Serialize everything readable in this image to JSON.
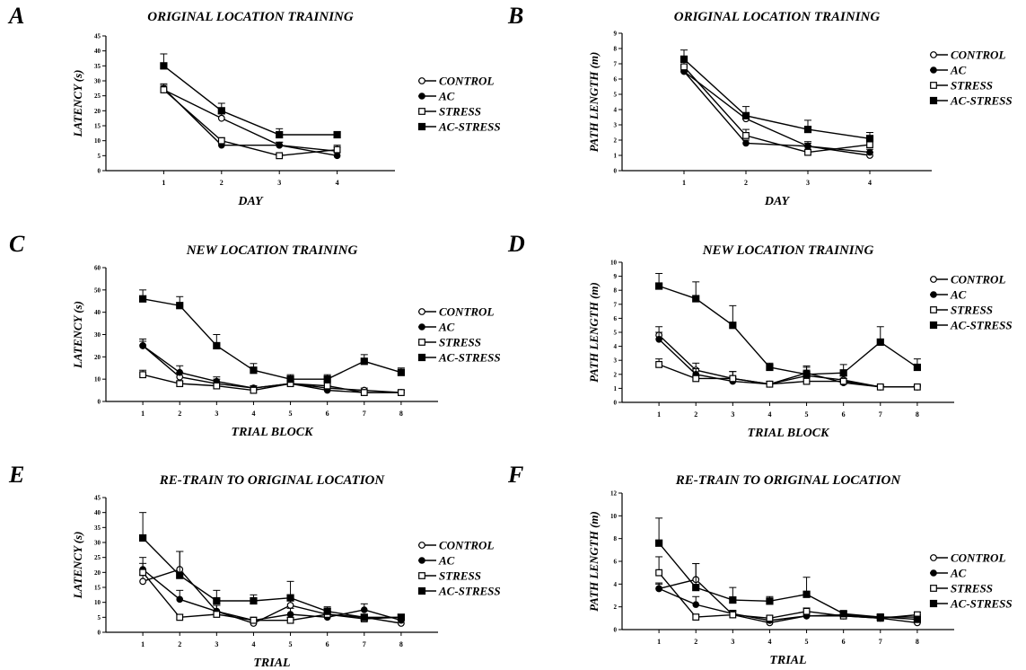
{
  "chart_data": [
    {
      "panel": "A",
      "type": "line",
      "title": "ORIGINAL LOCATION TRAINING",
      "xlabel": "DAY",
      "ylabel": "LATENCY (s)",
      "x": [
        1,
        2,
        3,
        4
      ],
      "xticks": [
        "1",
        "2",
        "3",
        "4"
      ],
      "ylim": [
        0,
        45
      ],
      "yticks": [
        "0",
        "5",
        "10",
        "15",
        "20",
        "25",
        "30",
        "35",
        "40",
        "45"
      ],
      "legend": "right",
      "grid": false,
      "series": [
        {
          "name": "CONTROL",
          "marker": "open-circle",
          "values": [
            27,
            17.5,
            8.5,
            6.5
          ],
          "errors": [
            1.5,
            1.5,
            1,
            1.5
          ]
        },
        {
          "name": "AC",
          "marker": "filled-circle",
          "values": [
            27.5,
            8.5,
            8.5,
            5
          ],
          "errors": [
            1.5,
            1,
            1,
            1
          ]
        },
        {
          "name": "STRESS",
          "marker": "open-square",
          "values": [
            27,
            10,
            5,
            7
          ],
          "errors": [
            1.5,
            1,
            0.5,
            1.5
          ]
        },
        {
          "name": "AC-STRESS",
          "marker": "filled-square",
          "values": [
            35,
            20,
            12,
            12
          ],
          "errors": [
            4,
            2.5,
            2,
            1
          ]
        }
      ]
    },
    {
      "panel": "B",
      "type": "line",
      "title": "ORIGINAL LOCATION TRAINING",
      "xlabel": "DAY",
      "ylabel": "PATH LENGTH (m)",
      "x": [
        1,
        2,
        3,
        4
      ],
      "xticks": [
        "1",
        "2",
        "3",
        "4"
      ],
      "ylim": [
        0,
        9
      ],
      "yticks": [
        "0",
        "1",
        "2",
        "3",
        "4",
        "5",
        "6",
        "7",
        "8",
        "9"
      ],
      "legend": "right",
      "grid": false,
      "series": [
        {
          "name": "CONTROL",
          "marker": "open-circle",
          "values": [
            6.5,
            3.4,
            1.6,
            1
          ],
          "errors": [
            0.4,
            0.3,
            0.3,
            0.2
          ]
        },
        {
          "name": "AC",
          "marker": "filled-circle",
          "values": [
            6.5,
            1.8,
            1.6,
            1.2
          ],
          "errors": [
            0.3,
            0.2,
            0.2,
            0.2
          ]
        },
        {
          "name": "STRESS",
          "marker": "open-square",
          "values": [
            6.8,
            2.3,
            1.2,
            1.7
          ],
          "errors": [
            0.4,
            0.4,
            0.2,
            0.4
          ]
        },
        {
          "name": "AC-STRESS",
          "marker": "filled-square",
          "values": [
            7.3,
            3.6,
            2.7,
            2.1
          ],
          "errors": [
            0.6,
            0.6,
            0.6,
            0.4
          ]
        }
      ]
    },
    {
      "panel": "C",
      "type": "line",
      "title": "NEW LOCATION TRAINING",
      "xlabel": "TRIAL BLOCK",
      "ylabel": "LATENCY (s)",
      "x": [
        1,
        2,
        3,
        4,
        5,
        6,
        7,
        8
      ],
      "xticks": [
        "1",
        "2",
        "3",
        "4",
        "5",
        "6",
        "7",
        "8"
      ],
      "ylim": [
        0,
        60
      ],
      "yticks": [
        "0",
        "10",
        "20",
        "30",
        "40",
        "50",
        "60"
      ],
      "legend": "right",
      "grid": false,
      "series": [
        {
          "name": "CONTROL",
          "marker": "open-circle",
          "values": [
            25,
            11,
            8,
            6,
            8,
            6,
            5,
            4
          ],
          "errors": [
            2,
            2,
            2,
            1,
            1,
            1,
            1,
            1
          ]
        },
        {
          "name": "AC",
          "marker": "filled-circle",
          "values": [
            25,
            13,
            9,
            6,
            8,
            5,
            4,
            4
          ],
          "errors": [
            3,
            3,
            2,
            1,
            1,
            1,
            1,
            1
          ]
        },
        {
          "name": "STRESS",
          "marker": "open-square",
          "values": [
            12,
            8,
            7,
            5,
            8,
            7,
            4,
            4
          ],
          "errors": [
            2,
            1,
            1,
            1,
            1,
            1,
            1,
            1
          ]
        },
        {
          "name": "AC-STRESS",
          "marker": "filled-square",
          "values": [
            46,
            43,
            25,
            14,
            10,
            10,
            18,
            13
          ],
          "errors": [
            4,
            4,
            5,
            3,
            2,
            2,
            3,
            2
          ]
        }
      ]
    },
    {
      "panel": "D",
      "type": "line",
      "title": "NEW LOCATION TRAINING",
      "xlabel": "TRIAL BLOCK",
      "ylabel": "PATH LENGTH (m)",
      "x": [
        1,
        2,
        3,
        4,
        5,
        6,
        7,
        8
      ],
      "xticks": [
        "1",
        "2",
        "3",
        "4",
        "5",
        "6",
        "7",
        "8"
      ],
      "ylim": [
        0,
        10
      ],
      "yticks": [
        "0",
        "1",
        "2",
        "3",
        "4",
        "5",
        "6",
        "7",
        "8",
        "9",
        "10"
      ],
      "legend": "right",
      "grid": false,
      "series": [
        {
          "name": "CONTROL",
          "marker": "open-circle",
          "values": [
            4.8,
            2.3,
            1.7,
            1.3,
            1.9,
            1.6,
            1.1,
            1.1
          ],
          "errors": [
            0.6,
            0.5,
            0.5,
            0.2,
            0.4,
            0.3,
            0.1,
            0.1
          ]
        },
        {
          "name": "AC",
          "marker": "filled-circle",
          "values": [
            4.5,
            2,
            1.5,
            1.3,
            2.1,
            1.4,
            1.1,
            1.1
          ],
          "errors": [
            0.5,
            0.4,
            0.3,
            0.2,
            0.4,
            0.3,
            0.1,
            0.1
          ]
        },
        {
          "name": "STRESS",
          "marker": "open-square",
          "values": [
            2.7,
            1.7,
            1.7,
            1.3,
            1.5,
            1.5,
            1.1,
            1.1
          ],
          "errors": [
            0.4,
            0.2,
            0.5,
            0.2,
            0.3,
            0.2,
            0.1,
            0.1
          ]
        },
        {
          "name": "AC-STRESS",
          "marker": "filled-square",
          "values": [
            8.3,
            7.4,
            5.5,
            2.5,
            2,
            2.1,
            4.3,
            2.5
          ],
          "errors": [
            0.9,
            1.2,
            1.4,
            0.3,
            0.6,
            0.6,
            1.1,
            0.6
          ]
        }
      ]
    },
    {
      "panel": "E",
      "type": "line",
      "title": "RE-TRAIN TO ORIGINAL LOCATION",
      "xlabel": "TRIAL",
      "ylabel": "LATENCY (s)",
      "x": [
        1,
        2,
        3,
        4,
        5,
        6,
        7,
        8
      ],
      "xticks": [
        "1",
        "2",
        "3",
        "4",
        "5",
        "6",
        "7",
        "8"
      ],
      "ylim": [
        0,
        45
      ],
      "yticks": [
        "0",
        "5",
        "10",
        "15",
        "20",
        "25",
        "30",
        "35",
        "40",
        "45"
      ],
      "legend": "right",
      "grid": false,
      "series": [
        {
          "name": "CONTROL",
          "marker": "open-circle",
          "values": [
            17,
            21,
            7,
            3,
            9,
            6,
            5,
            3
          ],
          "errors": [
            2,
            6,
            2,
            1,
            2,
            2,
            1,
            1
          ]
        },
        {
          "name": "AC",
          "marker": "filled-circle",
          "values": [
            21,
            11,
            7,
            4,
            6,
            5,
            7.5,
            4
          ],
          "errors": [
            4,
            3,
            2,
            1,
            2,
            2,
            2,
            1
          ]
        },
        {
          "name": "STRESS",
          "marker": "open-square",
          "values": [
            20,
            5,
            6,
            4,
            4,
            6,
            4.5,
            5
          ],
          "errors": [
            3,
            1,
            1,
            1,
            1,
            1,
            1,
            1
          ]
        },
        {
          "name": "AC-STRESS",
          "marker": "filled-square",
          "values": [
            31.5,
            19,
            10.5,
            10.5,
            11.5,
            7,
            5,
            5
          ],
          "errors": [
            8.5,
            8,
            3.5,
            2,
            5.5,
            1.5,
            1,
            1
          ]
        }
      ]
    },
    {
      "panel": "F",
      "type": "line",
      "title": "RE-TRAIN TO ORIGINAL LOCATION",
      "xlabel": "TRIAL",
      "ylabel": "PATH LENGTH (m)",
      "x": [
        1,
        2,
        3,
        4,
        5,
        6,
        7,
        8
      ],
      "xticks": [
        "1",
        "2",
        "3",
        "4",
        "5",
        "6",
        "7",
        "8"
      ],
      "ylim": [
        0,
        12
      ],
      "yticks": [
        "0",
        "2",
        "4",
        "6",
        "8",
        "10",
        "12"
      ],
      "legend": "right",
      "grid": false,
      "series": [
        {
          "name": "CONTROL",
          "marker": "open-circle",
          "values": [
            3.6,
            4.4,
            1.3,
            0.6,
            1.2,
            1.2,
            1,
            0.6
          ],
          "errors": [
            0.5,
            1.4,
            0.3,
            0.2,
            0.3,
            0.3,
            0.2,
            0.2
          ]
        },
        {
          "name": "AC",
          "marker": "filled-circle",
          "values": [
            3.6,
            2.2,
            1.4,
            0.8,
            1.2,
            1.3,
            1.1,
            1.1
          ],
          "errors": [
            0.4,
            0.7,
            0.3,
            0.2,
            0.3,
            0.3,
            0.2,
            0.2
          ]
        },
        {
          "name": "STRESS",
          "marker": "open-square",
          "values": [
            5,
            1.1,
            1.3,
            1,
            1.6,
            1.2,
            1,
            1.3
          ],
          "errors": [
            1.4,
            0.2,
            0.3,
            0.2,
            0.3,
            0.2,
            0.2,
            0.2
          ]
        },
        {
          "name": "AC-STRESS",
          "marker": "filled-square",
          "values": [
            7.6,
            3.7,
            2.6,
            2.5,
            3.1,
            1.4,
            1.1,
            0.9
          ],
          "errors": [
            2.2,
            2.1,
            1.1,
            0.4,
            1.5,
            0.2,
            0.2,
            0.2
          ]
        }
      ]
    }
  ]
}
